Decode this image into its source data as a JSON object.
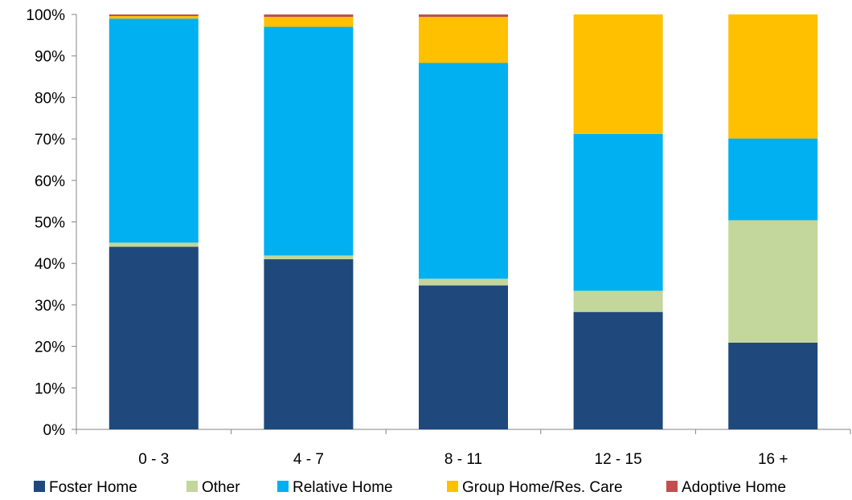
{
  "chart_data": {
    "type": "bar",
    "stacked": true,
    "normalized": true,
    "categories": [
      "0 - 3",
      "4 - 7",
      "8 - 11",
      "12 - 15",
      "16 +"
    ],
    "series": [
      {
        "name": "Foster Home",
        "color": "#1f497d",
        "values": [
          44.0,
          41.0,
          34.7,
          28.3,
          20.9
        ]
      },
      {
        "name": "Other",
        "color": "#c3d69b",
        "values": [
          1.0,
          0.9,
          1.6,
          5.1,
          29.5
        ]
      },
      {
        "name": "Relative Home",
        "color": "#00b0f0",
        "values": [
          54.0,
          55.1,
          52.0,
          37.8,
          19.7
        ]
      },
      {
        "name": "Group Home/Res. Care",
        "color": "#ffc000",
        "values": [
          0.6,
          2.4,
          11.1,
          28.8,
          29.9
        ]
      },
      {
        "name": "Adoptive Home",
        "color": "#c0504d",
        "values": [
          0.4,
          0.6,
          0.6,
          0.0,
          0.0
        ]
      }
    ],
    "y_ticks": [
      "0%",
      "10%",
      "20%",
      "30%",
      "40%",
      "50%",
      "60%",
      "70%",
      "80%",
      "90%",
      "100%"
    ],
    "ylim": [
      0,
      100
    ],
    "grid": false,
    "legend_position": "bottom"
  }
}
